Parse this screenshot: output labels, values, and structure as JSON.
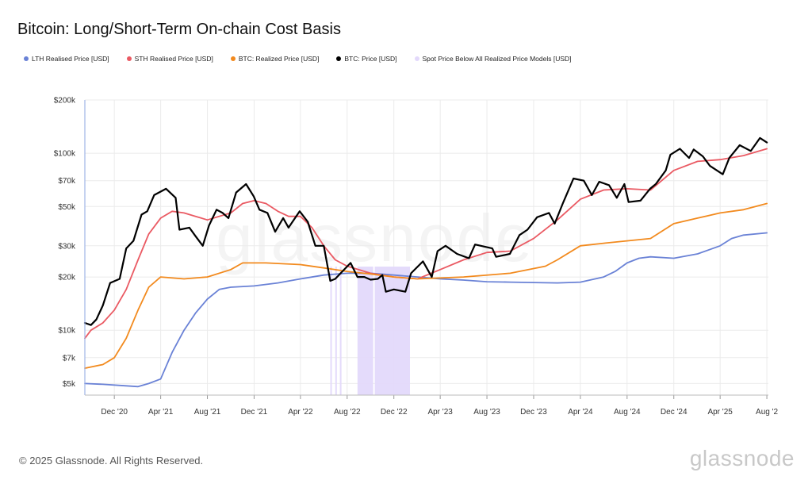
{
  "title": "Bitcoin: Long/Short-Term On-chain Cost Basis",
  "footer": "© 2025 Glassnode. All Rights Reserved.",
  "brand": "glassnode",
  "watermark": "glassnode",
  "chart_data": {
    "type": "line",
    "title": "Bitcoin: Long/Short-Term On-chain Cost Basis",
    "y_scale": "log",
    "ylim": [
      4300,
      200000
    ],
    "xlim": [
      "2020-09-15",
      "2025-08-05"
    ],
    "y_ticks": [
      {
        "value": 5000,
        "label": "$5k"
      },
      {
        "value": 7000,
        "label": "$7k"
      },
      {
        "value": 10000,
        "label": "$10k"
      },
      {
        "value": 20000,
        "label": "$20k"
      },
      {
        "value": 30000,
        "label": "$30k"
      },
      {
        "value": 50000,
        "label": "$50k"
      },
      {
        "value": 70000,
        "label": "$70k"
      },
      {
        "value": 100000,
        "label": "$100k"
      },
      {
        "value": 200000,
        "label": "$200k"
      }
    ],
    "x_ticks": [
      {
        "date": "2020-12-01",
        "label": "Dec '20"
      },
      {
        "date": "2021-04-01",
        "label": "Apr '21"
      },
      {
        "date": "2021-08-01",
        "label": "Aug '21"
      },
      {
        "date": "2021-12-01",
        "label": "Dec '21"
      },
      {
        "date": "2022-04-01",
        "label": "Apr '22"
      },
      {
        "date": "2022-08-01",
        "label": "Aug '22"
      },
      {
        "date": "2022-12-01",
        "label": "Dec '22"
      },
      {
        "date": "2023-04-01",
        "label": "Apr '23"
      },
      {
        "date": "2023-08-01",
        "label": "Aug '23"
      },
      {
        "date": "2023-12-01",
        "label": "Dec '23"
      },
      {
        "date": "2024-04-01",
        "label": "Apr '24"
      },
      {
        "date": "2024-08-01",
        "label": "Aug '24"
      },
      {
        "date": "2024-12-01",
        "label": "Dec '24"
      },
      {
        "date": "2025-04-01",
        "label": "Apr '25"
      },
      {
        "date": "2025-08-01",
        "label": "Aug '2"
      }
    ],
    "grid": true,
    "legend_position": "top",
    "shaded_regions": {
      "name": "Spot Price Below All Realized Price Models [USD]",
      "color": "#e3d9fb",
      "ranges": [
        [
          "2022-06-18",
          "2022-06-20"
        ],
        [
          "2022-07-01",
          "2022-07-03"
        ],
        [
          "2022-07-13",
          "2022-07-15"
        ],
        [
          "2022-08-28",
          "2022-10-08"
        ],
        [
          "2022-10-12",
          "2023-01-12"
        ]
      ]
    },
    "series": [
      {
        "name": "LTH Realised Price [USD]",
        "color": "#6a82d6",
        "points": [
          [
            "2020-09-15",
            5000
          ],
          [
            "2020-11-01",
            4950
          ],
          [
            "2021-01-01",
            4850
          ],
          [
            "2021-02-01",
            4800
          ],
          [
            "2021-03-01",
            5000
          ],
          [
            "2021-04-01",
            5300
          ],
          [
            "2021-05-01",
            7500
          ],
          [
            "2021-06-01",
            10000
          ],
          [
            "2021-07-01",
            12500
          ],
          [
            "2021-08-01",
            15000
          ],
          [
            "2021-09-01",
            17000
          ],
          [
            "2021-10-01",
            17500
          ],
          [
            "2021-12-01",
            17800
          ],
          [
            "2022-02-01",
            18500
          ],
          [
            "2022-04-01",
            19500
          ],
          [
            "2022-06-01",
            20500
          ],
          [
            "2022-08-01",
            21000
          ],
          [
            "2022-10-01",
            21000
          ],
          [
            "2022-12-01",
            20500
          ],
          [
            "2023-02-01",
            20000
          ],
          [
            "2023-04-01",
            19500
          ],
          [
            "2023-06-01",
            19200
          ],
          [
            "2023-08-01",
            18800
          ],
          [
            "2023-10-01",
            18700
          ],
          [
            "2023-12-01",
            18600
          ],
          [
            "2024-02-01",
            18500
          ],
          [
            "2024-04-01",
            18700
          ],
          [
            "2024-06-01",
            20000
          ],
          [
            "2024-07-01",
            21500
          ],
          [
            "2024-08-01",
            24000
          ],
          [
            "2024-09-01",
            25500
          ],
          [
            "2024-10-01",
            26000
          ],
          [
            "2024-12-01",
            25500
          ],
          [
            "2025-02-01",
            27000
          ],
          [
            "2025-04-01",
            30000
          ],
          [
            "2025-05-01",
            33000
          ],
          [
            "2025-06-01",
            34500
          ],
          [
            "2025-08-01",
            35500
          ]
        ]
      },
      {
        "name": "STH Realised Price [USD]",
        "color": "#ea5a63",
        "points": [
          [
            "2020-09-15",
            9000
          ],
          [
            "2020-10-01",
            10000
          ],
          [
            "2020-11-01",
            11000
          ],
          [
            "2020-12-01",
            13000
          ],
          [
            "2021-01-01",
            17000
          ],
          [
            "2021-02-01",
            25000
          ],
          [
            "2021-03-01",
            35000
          ],
          [
            "2021-04-01",
            43000
          ],
          [
            "2021-05-01",
            47000
          ],
          [
            "2021-06-01",
            46000
          ],
          [
            "2021-07-01",
            44000
          ],
          [
            "2021-08-01",
            42000
          ],
          [
            "2021-09-01",
            44000
          ],
          [
            "2021-10-01",
            46000
          ],
          [
            "2021-11-01",
            52000
          ],
          [
            "2021-12-01",
            54000
          ],
          [
            "2022-01-01",
            52000
          ],
          [
            "2022-02-01",
            47000
          ],
          [
            "2022-03-01",
            44000
          ],
          [
            "2022-04-01",
            44000
          ],
          [
            "2022-05-01",
            38000
          ],
          [
            "2022-06-01",
            30000
          ],
          [
            "2022-07-01",
            25000
          ],
          [
            "2022-08-01",
            23000
          ],
          [
            "2022-10-01",
            21000
          ],
          [
            "2022-12-01",
            20000
          ],
          [
            "2023-02-01",
            19500
          ],
          [
            "2023-04-01",
            22000
          ],
          [
            "2023-06-01",
            25000
          ],
          [
            "2023-08-01",
            27500
          ],
          [
            "2023-10-01",
            28000
          ],
          [
            "2023-12-01",
            33000
          ],
          [
            "2024-02-01",
            42000
          ],
          [
            "2024-04-01",
            55000
          ],
          [
            "2024-06-01",
            62000
          ],
          [
            "2024-08-01",
            63000
          ],
          [
            "2024-10-01",
            62000
          ],
          [
            "2024-12-01",
            80000
          ],
          [
            "2025-02-01",
            90000
          ],
          [
            "2025-04-01",
            92000
          ],
          [
            "2025-06-01",
            97000
          ],
          [
            "2025-08-01",
            106000
          ]
        ]
      },
      {
        "name": "BTC: Realized Price [USD]",
        "color": "#f28a1e",
        "points": [
          [
            "2020-09-15",
            6100
          ],
          [
            "2020-11-01",
            6400
          ],
          [
            "2020-12-01",
            7000
          ],
          [
            "2021-01-01",
            9000
          ],
          [
            "2021-02-01",
            13000
          ],
          [
            "2021-03-01",
            17500
          ],
          [
            "2021-04-01",
            20000
          ],
          [
            "2021-06-01",
            19500
          ],
          [
            "2021-08-01",
            20000
          ],
          [
            "2021-10-01",
            22000
          ],
          [
            "2021-11-01",
            24000
          ],
          [
            "2022-01-01",
            24000
          ],
          [
            "2022-04-01",
            23500
          ],
          [
            "2022-06-01",
            22500
          ],
          [
            "2022-08-01",
            21500
          ],
          [
            "2022-10-01",
            20800
          ],
          [
            "2022-12-01",
            20000
          ],
          [
            "2023-02-01",
            19500
          ],
          [
            "2023-06-01",
            20000
          ],
          [
            "2023-10-01",
            21000
          ],
          [
            "2024-01-01",
            23000
          ],
          [
            "2024-02-01",
            25000
          ],
          [
            "2024-04-01",
            30000
          ],
          [
            "2024-06-01",
            31000
          ],
          [
            "2024-10-01",
            33000
          ],
          [
            "2024-12-01",
            40000
          ],
          [
            "2025-02-01",
            43000
          ],
          [
            "2025-04-01",
            46000
          ],
          [
            "2025-06-01",
            48000
          ],
          [
            "2025-08-01",
            52000
          ]
        ]
      },
      {
        "name": "BTC: Price [USD]",
        "color": "#000000",
        "points": [
          [
            "2020-09-15",
            11000
          ],
          [
            "2020-10-01",
            10700
          ],
          [
            "2020-10-15",
            11500
          ],
          [
            "2020-11-01",
            13800
          ],
          [
            "2020-11-20",
            18500
          ],
          [
            "2020-12-15",
            19500
          ],
          [
            "2021-01-01",
            29000
          ],
          [
            "2021-01-20",
            32000
          ],
          [
            "2021-02-10",
            45000
          ],
          [
            "2021-02-25",
            47000
          ],
          [
            "2021-03-15",
            58000
          ],
          [
            "2021-04-15",
            63000
          ],
          [
            "2021-05-10",
            56000
          ],
          [
            "2021-05-20",
            37000
          ],
          [
            "2021-06-15",
            38000
          ],
          [
            "2021-07-01",
            34000
          ],
          [
            "2021-07-20",
            30000
          ],
          [
            "2021-08-05",
            39000
          ],
          [
            "2021-08-25",
            48000
          ],
          [
            "2021-09-10",
            46000
          ],
          [
            "2021-09-25",
            43000
          ],
          [
            "2021-10-15",
            60000
          ],
          [
            "2021-11-10",
            67000
          ],
          [
            "2021-11-30",
            57000
          ],
          [
            "2021-12-15",
            48000
          ],
          [
            "2022-01-05",
            46000
          ],
          [
            "2022-01-25",
            36000
          ],
          [
            "2022-02-15",
            43000
          ],
          [
            "2022-03-01",
            38000
          ],
          [
            "2022-03-30",
            47000
          ],
          [
            "2022-04-20",
            41000
          ],
          [
            "2022-05-10",
            30000
          ],
          [
            "2022-06-01",
            30000
          ],
          [
            "2022-06-18",
            19000
          ],
          [
            "2022-07-01",
            19500
          ],
          [
            "2022-07-15",
            21000
          ],
          [
            "2022-08-10",
            24000
          ],
          [
            "2022-08-28",
            20000
          ],
          [
            "2022-09-15",
            20000
          ],
          [
            "2022-10-01",
            19300
          ],
          [
            "2022-10-20",
            19500
          ],
          [
            "2022-11-01",
            20500
          ],
          [
            "2022-11-10",
            16500
          ],
          [
            "2022-12-01",
            17000
          ],
          [
            "2022-12-31",
            16500
          ],
          [
            "2023-01-15",
            21000
          ],
          [
            "2023-02-15",
            24500
          ],
          [
            "2023-03-10",
            20000
          ],
          [
            "2023-03-25",
            28000
          ],
          [
            "2023-04-15",
            30000
          ],
          [
            "2023-05-15",
            27000
          ],
          [
            "2023-06-15",
            25500
          ],
          [
            "2023-07-01",
            30500
          ],
          [
            "2023-08-15",
            29000
          ],
          [
            "2023-08-25",
            26000
          ],
          [
            "2023-09-30",
            27000
          ],
          [
            "2023-10-25",
            34500
          ],
          [
            "2023-11-15",
            37000
          ],
          [
            "2023-12-10",
            43500
          ],
          [
            "2024-01-10",
            46000
          ],
          [
            "2024-01-25",
            40000
          ],
          [
            "2024-02-15",
            52000
          ],
          [
            "2024-03-14",
            72000
          ],
          [
            "2024-04-10",
            70000
          ],
          [
            "2024-05-01",
            58000
          ],
          [
            "2024-05-20",
            69000
          ],
          [
            "2024-06-15",
            66000
          ],
          [
            "2024-07-05",
            56000
          ],
          [
            "2024-07-25",
            67000
          ],
          [
            "2024-08-05",
            53000
          ],
          [
            "2024-09-05",
            54000
          ],
          [
            "2024-09-30",
            63000
          ],
          [
            "2024-10-15",
            67000
          ],
          [
            "2024-11-10",
            80000
          ],
          [
            "2024-11-22",
            98000
          ],
          [
            "2024-12-17",
            106000
          ],
          [
            "2025-01-10",
            94000
          ],
          [
            "2025-01-22",
            105000
          ],
          [
            "2025-02-15",
            96000
          ],
          [
            "2025-03-05",
            85000
          ],
          [
            "2025-04-08",
            76000
          ],
          [
            "2025-04-25",
            94000
          ],
          [
            "2025-05-22",
            111000
          ],
          [
            "2025-06-20",
            103000
          ],
          [
            "2025-07-14",
            122000
          ],
          [
            "2025-08-01",
            115000
          ]
        ]
      }
    ]
  }
}
